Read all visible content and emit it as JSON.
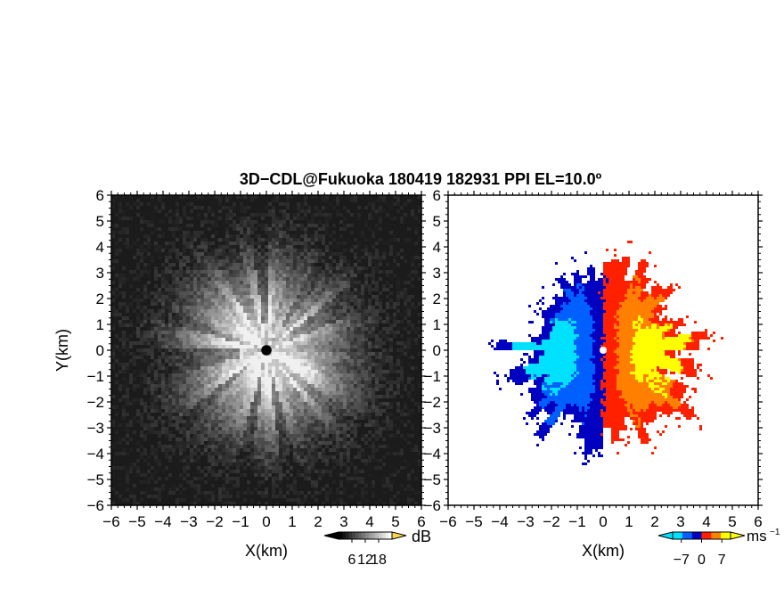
{
  "title": "3D−CDL@Fukuoka 180419 182931 PPI EL=10.0º",
  "chart_data": [
    {
      "type": "heatmap",
      "panel": "left",
      "quantity": "signal intensity",
      "xlabel": "X(km)",
      "ylabel": "Y(km)",
      "xlim": [
        -6,
        6
      ],
      "ylim": [
        -6,
        6
      ],
      "xticks": [
        "−6",
        "−5",
        "−4",
        "−3",
        "−2",
        "−1",
        "0",
        "1",
        "2",
        "3",
        "4",
        "5",
        "6"
      ],
      "yticks": [
        "−6",
        "−5",
        "−4",
        "−3",
        "−2",
        "−1",
        "0",
        "1",
        "2",
        "3",
        "4",
        "5",
        "6"
      ],
      "colorbar": {
        "unit": "dB",
        "ticks": [
          "6",
          "12",
          "18"
        ],
        "range": [
          0,
          24
        ],
        "colors": [
          "#000000",
          "#ffffff"
        ]
      },
      "field_description": {
        "peak_radius_km": 1.0,
        "falloff_radius_km": 3.8,
        "center_mask_radius_km": 0.2
      }
    },
    {
      "type": "heatmap",
      "panel": "right",
      "quantity": "Doppler velocity",
      "xlabel": "X(km)",
      "ylabel": "",
      "xlim": [
        -6,
        6
      ],
      "ylim": [
        -6,
        6
      ],
      "xticks": [
        "−6",
        "−5",
        "−4",
        "−3",
        "−2",
        "−1",
        "0",
        "1",
        "2",
        "3",
        "4",
        "5",
        "6"
      ],
      "yticks": [
        "−6",
        "−5",
        "−4",
        "−3",
        "−2",
        "−1",
        "0",
        "1",
        "2",
        "3",
        "4",
        "5",
        "6"
      ],
      "colorbar": {
        "unit": "ms",
        "unit_exp": "−1",
        "ticks": [
          "−7",
          "0",
          "7"
        ],
        "range": [
          -10,
          10
        ],
        "colors": [
          "#00e0ff",
          "#0060ff",
          "#0000c0",
          "#ff2000",
          "#ff8000",
          "#ffff00"
        ]
      },
      "field_description": {
        "approaching_side": "west",
        "receding_side": "east",
        "data_radius_km": 3.3,
        "max_speed_ms": 10
      }
    }
  ]
}
